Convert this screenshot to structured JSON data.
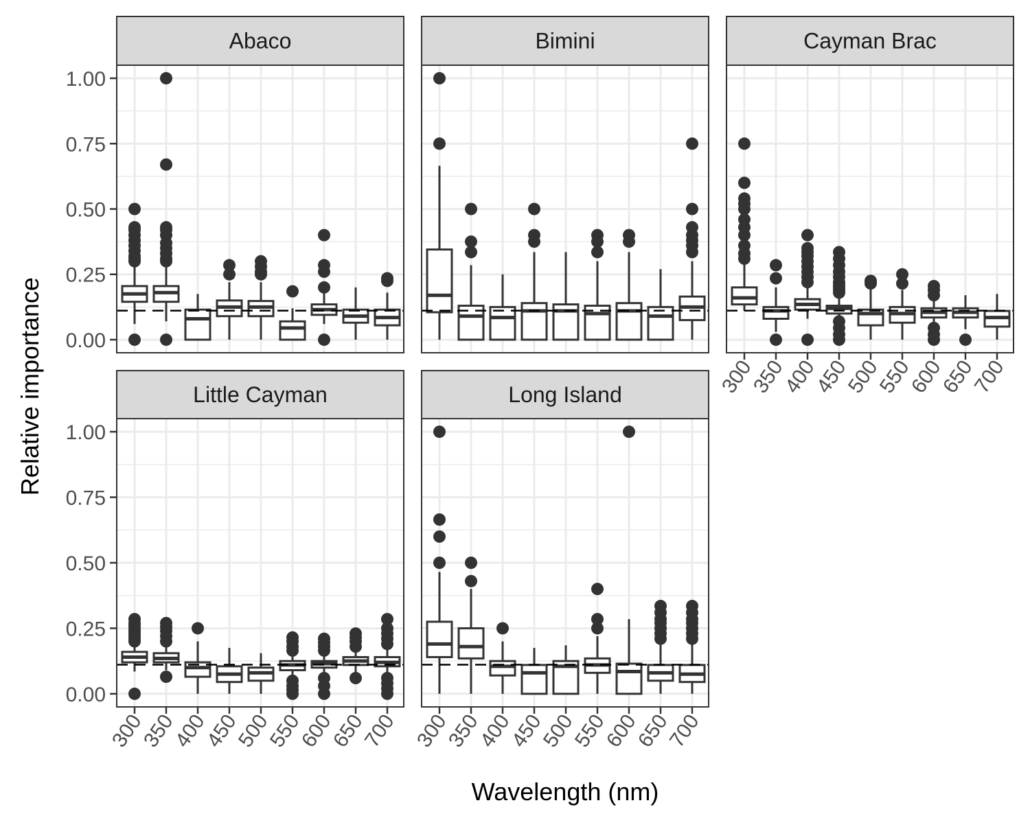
{
  "chart_data": {
    "type": "boxplot",
    "facet_layout": "3 columns x 2 rows, shared y axis, free x axes per column",
    "xlabel": "Wavelength (nm)",
    "ylabel": "Relative importance",
    "categories": [
      "300",
      "350",
      "400",
      "450",
      "500",
      "550",
      "600",
      "650",
      "700"
    ],
    "y_ticks": [
      0,
      0.25,
      0.5,
      0.75,
      1
    ],
    "y_tick_labels": [
      "0.00",
      "0.25",
      "0.50",
      "0.75",
      "1.00"
    ],
    "ylim": [
      -0.05,
      1.05
    ],
    "reference_line": {
      "style": "dashed",
      "y": 0.111
    },
    "grid": true,
    "colors": {
      "strip_fill": "#d9d9d9",
      "box_fill": "#ffffff",
      "box_line": "#333333",
      "outlier": "#333333",
      "grid": "#ebebeb",
      "panel_border": "#333333"
    },
    "panels": [
      {
        "title": "Abaco",
        "boxes": [
          {
            "q1": 0.145,
            "median": 0.175,
            "q3": 0.205,
            "whisker_low": 0.06,
            "whisker_high": 0.29,
            "outliers": [
              0,
              0.3,
              0.31,
              0.32,
              0.34,
              0.36,
              0.38,
              0.4,
              0.42,
              0.43,
              0.5
            ]
          },
          {
            "q1": 0.145,
            "median": 0.18,
            "q3": 0.205,
            "whisker_low": 0.07,
            "whisker_high": 0.29,
            "outliers": [
              0,
              0.3,
              0.31,
              0.33,
              0.35,
              0.37,
              0.4,
              0.42,
              0.43,
              0.67,
              1.0
            ]
          },
          {
            "q1": 0,
            "median": 0.08,
            "q3": 0.115,
            "whisker_low": 0,
            "whisker_high": 0.175,
            "outliers": []
          },
          {
            "q1": 0.09,
            "median": 0.125,
            "q3": 0.15,
            "whisker_low": 0,
            "whisker_high": 0.22,
            "outliers": [
              0.25,
              0.285
            ]
          },
          {
            "q1": 0.09,
            "median": 0.125,
            "q3": 0.148,
            "whisker_low": 0,
            "whisker_high": 0.22,
            "outliers": [
              0.25,
              0.26,
              0.28,
              0.3
            ]
          },
          {
            "q1": 0,
            "median": 0.045,
            "q3": 0.07,
            "whisker_low": 0,
            "whisker_high": 0.12,
            "outliers": [
              0.185
            ]
          },
          {
            "q1": 0.095,
            "median": 0.115,
            "q3": 0.135,
            "whisker_low": 0.06,
            "whisker_high": 0.18,
            "outliers": [
              0,
              0.2,
              0.26,
              0.285,
              0.4
            ]
          },
          {
            "q1": 0.065,
            "median": 0.09,
            "q3": 0.115,
            "whisker_low": 0,
            "whisker_high": 0.2,
            "outliers": []
          },
          {
            "q1": 0.055,
            "median": 0.085,
            "q3": 0.115,
            "whisker_low": 0,
            "whisker_high": 0.18,
            "outliers": [
              0.225,
              0.235
            ]
          }
        ]
      },
      {
        "title": "Bimini",
        "boxes": [
          {
            "q1": 0.105,
            "median": 0.17,
            "q3": 0.345,
            "whisker_low": 0,
            "whisker_high": 0.665,
            "outliers": [
              0.75,
              1.0
            ]
          },
          {
            "q1": 0,
            "median": 0.09,
            "q3": 0.13,
            "whisker_low": 0,
            "whisker_high": 0.285,
            "outliers": [
              0.335,
              0.375,
              0.5
            ]
          },
          {
            "q1": 0,
            "median": 0.085,
            "q3": 0.125,
            "whisker_low": 0,
            "whisker_high": 0.25,
            "outliers": []
          },
          {
            "q1": 0,
            "median": 0.11,
            "q3": 0.14,
            "whisker_low": 0,
            "whisker_high": 0.335,
            "outliers": [
              0.375,
              0.4,
              0.5
            ]
          },
          {
            "q1": 0,
            "median": 0.11,
            "q3": 0.135,
            "whisker_low": 0,
            "whisker_high": 0.335,
            "outliers": []
          },
          {
            "q1": 0,
            "median": 0.1,
            "q3": 0.13,
            "whisker_low": 0,
            "whisker_high": 0.3,
            "outliers": [
              0.335,
              0.375,
              0.4
            ]
          },
          {
            "q1": 0,
            "median": 0.11,
            "q3": 0.14,
            "whisker_low": 0,
            "whisker_high": 0.335,
            "outliers": [
              0.375,
              0.4
            ]
          },
          {
            "q1": 0,
            "median": 0.09,
            "q3": 0.125,
            "whisker_low": 0,
            "whisker_high": 0.27,
            "outliers": []
          },
          {
            "q1": 0.075,
            "median": 0.125,
            "q3": 0.165,
            "whisker_low": 0,
            "whisker_high": 0.3,
            "outliers": [
              0.335,
              0.36,
              0.38,
              0.4,
              0.43,
              0.5,
              0.75
            ]
          }
        ]
      },
      {
        "title": "Cayman Brac",
        "boxes": [
          {
            "q1": 0.135,
            "median": 0.16,
            "q3": 0.2,
            "whisker_low": 0.11,
            "whisker_high": 0.29,
            "outliers": [
              0.31,
              0.33,
              0.36,
              0.4,
              0.43,
              0.46,
              0.5,
              0.52,
              0.54,
              0.6,
              0.75
            ]
          },
          {
            "q1": 0.08,
            "median": 0.11,
            "q3": 0.125,
            "whisker_low": 0.03,
            "whisker_high": 0.2,
            "outliers": [
              0,
              0.235,
              0.285
            ]
          },
          {
            "q1": 0.115,
            "median": 0.135,
            "q3": 0.155,
            "whisker_low": 0.08,
            "whisker_high": 0.2,
            "outliers": [
              0,
              0.22,
              0.24,
              0.26,
              0.28,
              0.3,
              0.32,
              0.335,
              0.35,
              0.4
            ]
          },
          {
            "q1": 0.1,
            "median": 0.12,
            "q3": 0.13,
            "whisker_low": 0.07,
            "whisker_high": 0.165,
            "outliers": [
              0,
              0.02,
              0.045,
              0.07,
              0.18,
              0.19,
              0.2,
              0.21,
              0.22,
              0.24,
              0.26,
              0.285,
              0.31,
              0.335
            ]
          },
          {
            "q1": 0.055,
            "median": 0.1,
            "q3": 0.115,
            "whisker_low": 0,
            "whisker_high": 0.2,
            "outliers": [
              0.215,
              0.225
            ]
          },
          {
            "q1": 0.065,
            "median": 0.1,
            "q3": 0.125,
            "whisker_low": 0,
            "whisker_high": 0.19,
            "outliers": [
              0.215,
              0.25
            ]
          },
          {
            "q1": 0.085,
            "median": 0.105,
            "q3": 0.12,
            "whisker_low": 0.06,
            "whisker_high": 0.155,
            "outliers": [
              0,
              0.02,
              0.045,
              0.17,
              0.19,
              0.205
            ]
          },
          {
            "q1": 0.085,
            "median": 0.105,
            "q3": 0.12,
            "whisker_low": 0.04,
            "whisker_high": 0.17,
            "outliers": [
              0
            ]
          },
          {
            "q1": 0.05,
            "median": 0.085,
            "q3": 0.11,
            "whisker_low": 0,
            "whisker_high": 0.175,
            "outliers": []
          }
        ]
      },
      {
        "title": "Little Cayman",
        "boxes": [
          {
            "q1": 0.12,
            "median": 0.14,
            "q3": 0.16,
            "whisker_low": 0.085,
            "whisker_high": 0.19,
            "outliers": [
              0,
              0.2,
              0.21,
              0.22,
              0.23,
              0.24,
              0.25,
              0.26,
              0.27,
              0.285
            ]
          },
          {
            "q1": 0.12,
            "median": 0.135,
            "q3": 0.155,
            "whisker_low": 0.09,
            "whisker_high": 0.185,
            "outliers": [
              0.065,
              0.2,
              0.22,
              0.24,
              0.255,
              0.27
            ]
          },
          {
            "q1": 0.065,
            "median": 0.1,
            "q3": 0.12,
            "whisker_low": 0,
            "whisker_high": 0.2,
            "outliers": [
              0.25
            ]
          },
          {
            "q1": 0.045,
            "median": 0.075,
            "q3": 0.105,
            "whisker_low": 0,
            "whisker_high": 0.175,
            "outliers": []
          },
          {
            "q1": 0.05,
            "median": 0.08,
            "q3": 0.1,
            "whisker_low": 0,
            "whisker_high": 0.155,
            "outliers": []
          },
          {
            "q1": 0.09,
            "median": 0.11,
            "q3": 0.125,
            "whisker_low": 0.06,
            "whisker_high": 0.15,
            "outliers": [
              0,
              0.015,
              0.03,
              0.05,
              0.165,
              0.18,
              0.2,
              0.215
            ]
          },
          {
            "q1": 0.1,
            "median": 0.115,
            "q3": 0.125,
            "whisker_low": 0.07,
            "whisker_high": 0.15,
            "outliers": [
              0,
              0.03,
              0.06,
              0.165,
              0.18,
              0.195,
              0.21
            ]
          },
          {
            "q1": 0.11,
            "median": 0.125,
            "q3": 0.14,
            "whisker_low": 0.08,
            "whisker_high": 0.17,
            "outliers": [
              0.06,
              0.18,
              0.2,
              0.215,
              0.23
            ]
          },
          {
            "q1": 0.105,
            "median": 0.12,
            "q3": 0.14,
            "whisker_low": 0.07,
            "whisker_high": 0.17,
            "outliers": [
              0,
              0.02,
              0.04,
              0.06,
              0.19,
              0.21,
              0.23,
              0.25,
              0.285
            ]
          }
        ]
      },
      {
        "title": "Long Island",
        "boxes": [
          {
            "q1": 0.14,
            "median": 0.19,
            "q3": 0.275,
            "whisker_low": 0,
            "whisker_high": 0.465,
            "outliers": [
              0.5,
              0.6,
              0.665,
              1.0
            ]
          },
          {
            "q1": 0.135,
            "median": 0.18,
            "q3": 0.25,
            "whisker_low": 0,
            "whisker_high": 0.4,
            "outliers": [
              0.43,
              0.5
            ]
          },
          {
            "q1": 0.07,
            "median": 0.105,
            "q3": 0.125,
            "whisker_low": 0,
            "whisker_high": 0.2,
            "outliers": [
              0.25
            ]
          },
          {
            "q1": 0,
            "median": 0.08,
            "q3": 0.11,
            "whisker_low": 0,
            "whisker_high": 0.175,
            "outliers": []
          },
          {
            "q1": 0,
            "median": 0.105,
            "q3": 0.125,
            "whisker_low": 0,
            "whisker_high": 0.185,
            "outliers": []
          },
          {
            "q1": 0.08,
            "median": 0.11,
            "q3": 0.135,
            "whisker_low": 0,
            "whisker_high": 0.22,
            "outliers": [
              0.25,
              0.285,
              0.4
            ]
          },
          {
            "q1": 0,
            "median": 0.085,
            "q3": 0.115,
            "whisker_low": 0,
            "whisker_high": 0.285,
            "outliers": [
              1.0
            ]
          },
          {
            "q1": 0.05,
            "median": 0.08,
            "q3": 0.11,
            "whisker_low": 0,
            "whisker_high": 0.2,
            "outliers": [
              0.21,
              0.23,
              0.25,
              0.27,
              0.285,
              0.31,
              0.335
            ]
          },
          {
            "q1": 0.045,
            "median": 0.075,
            "q3": 0.11,
            "whisker_low": 0,
            "whisker_high": 0.2,
            "outliers": [
              0.21,
              0.23,
              0.25,
              0.27,
              0.285,
              0.31,
              0.335
            ]
          }
        ]
      }
    ]
  }
}
